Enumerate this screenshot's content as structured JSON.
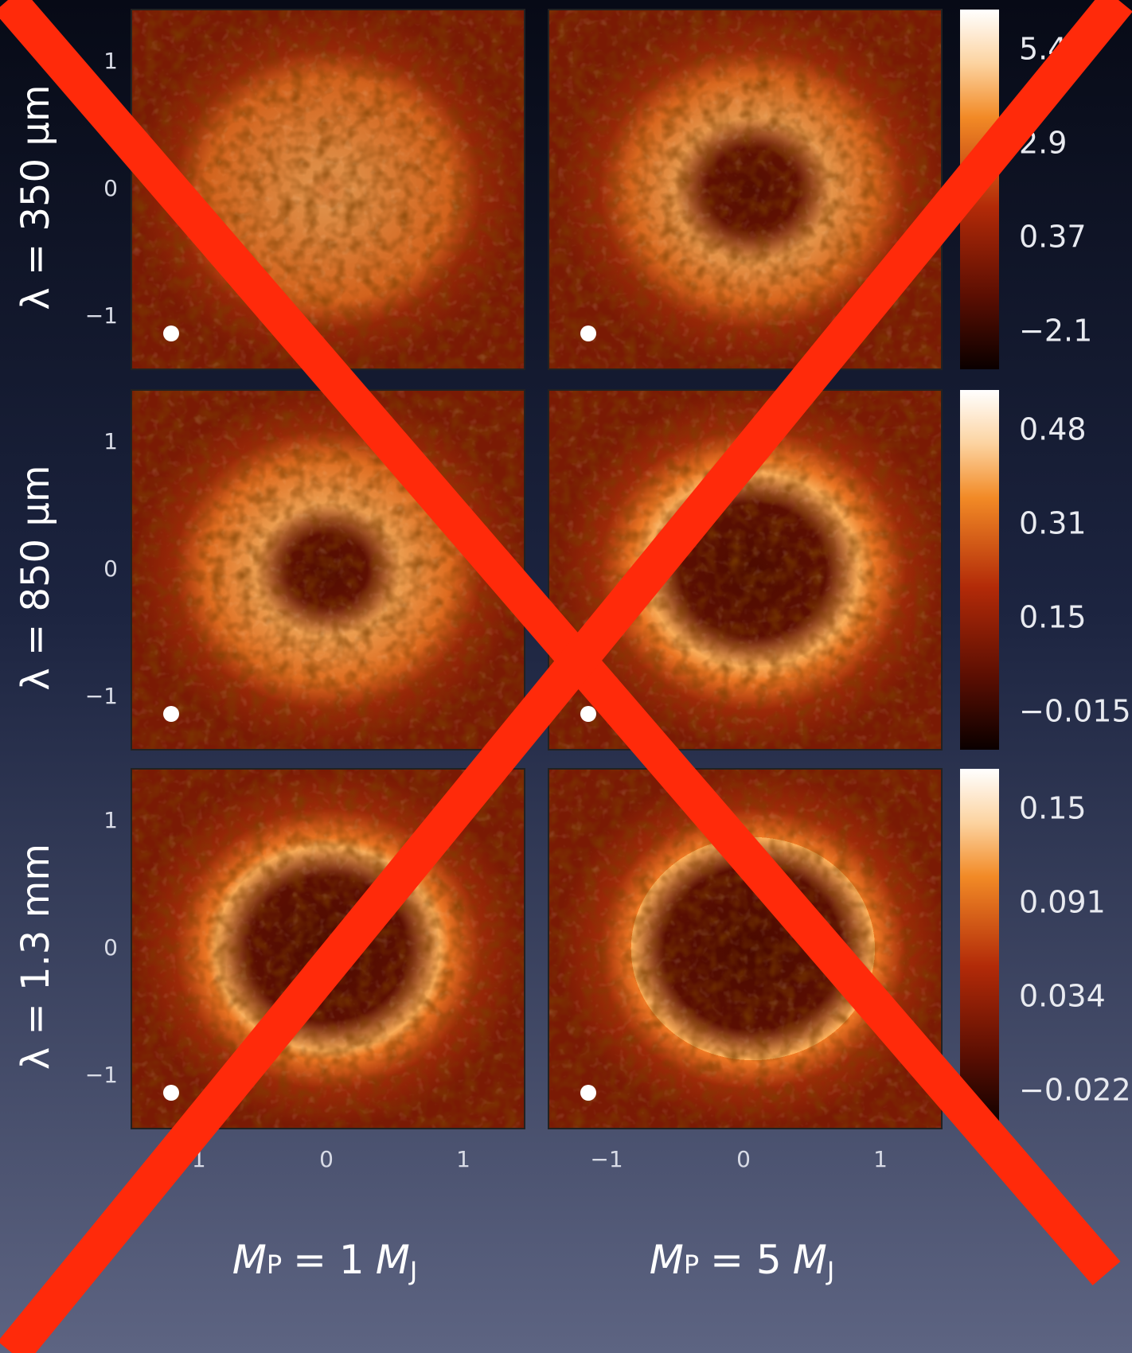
{
  "rows": [
    {
      "label": "λ = 350 μm",
      "colorbar": [
        "5.4",
        "2.9",
        "0.37",
        "−2.1"
      ]
    },
    {
      "label": "λ = 850 μm",
      "colorbar": [
        "0.48",
        "0.31",
        "0.15",
        "−0.015"
      ]
    },
    {
      "label": "λ = 1.3 mm",
      "colorbar": [
        "0.15",
        "0.091",
        "0.034",
        "−0.022"
      ]
    }
  ],
  "y_ticks": [
    "1",
    "0",
    "−1"
  ],
  "x_ticks": [
    "−1",
    "0",
    "1"
  ],
  "columns": [
    {
      "mass": "M",
      "mass_sub": "P",
      "middle": "= 1",
      "unit": "M",
      "unit_sub": "J"
    },
    {
      "mass": "M",
      "mass_sub": "P",
      "middle": "= 5",
      "unit": "M",
      "unit_sub": "J"
    }
  ]
}
